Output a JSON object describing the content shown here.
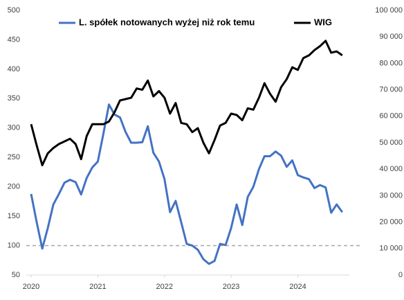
{
  "chart_data": {
    "type": "line",
    "x": [
      2020,
      2020.083,
      2020.167,
      2020.25,
      2020.333,
      2020.417,
      2020.5,
      2020.583,
      2020.667,
      2020.75,
      2020.833,
      2020.917,
      2021,
      2021.083,
      2021.167,
      2021.25,
      2021.333,
      2021.417,
      2021.5,
      2021.583,
      2021.667,
      2021.75,
      2021.833,
      2021.917,
      2022,
      2022.083,
      2022.167,
      2022.25,
      2022.333,
      2022.417,
      2022.5,
      2022.583,
      2022.667,
      2022.75,
      2022.833,
      2022.917,
      2023,
      2023.083,
      2023.167,
      2023.25,
      2023.333,
      2023.417,
      2023.5,
      2023.583,
      2023.667,
      2023.75,
      2023.833,
      2023.917,
      2024,
      2024.083,
      2024.167,
      2024.25,
      2024.333,
      2024.417,
      2024.5,
      2024.583,
      2024.667
    ],
    "xlim": [
      2020,
      2024.7
    ],
    "xticks": [
      2020,
      2021,
      2022,
      2023,
      2024
    ],
    "ylim": [
      50,
      500
    ],
    "yticks": [
      50,
      100,
      150,
      200,
      250,
      300,
      350,
      400,
      450,
      500
    ],
    "y2lim": [
      0,
      100000
    ],
    "y2ticks": [
      0,
      {
        "value": 10000,
        "label": "10 000"
      },
      {
        "value": 20000,
        "label": "20 000"
      },
      {
        "value": 30000,
        "label": "30 000"
      },
      {
        "value": 40000,
        "label": "40 000"
      },
      {
        "value": 50000,
        "label": "50 000"
      },
      {
        "value": 60000,
        "label": "60 000"
      },
      {
        "value": 70000,
        "label": "70 000"
      },
      {
        "value": 80000,
        "label": "80 000"
      },
      {
        "value": 90000,
        "label": "90 000"
      },
      {
        "value": 100000,
        "label": "100 000"
      }
    ],
    "reference_line": {
      "value": 100,
      "color": "#a6a6a6"
    },
    "legend": "top",
    "series": [
      {
        "name": "L. spółek notowanych wyżej niż rok temu",
        "color": "#4472c4",
        "values": [
          188,
          140,
          95,
          130,
          170,
          188,
          207,
          212,
          208,
          187,
          215,
          233,
          243,
          290,
          340,
          323,
          318,
          293,
          275,
          275,
          276,
          303,
          258,
          243,
          213,
          157,
          176,
          140,
          103,
          100,
          93,
          77,
          69,
          74,
          103,
          101,
          130,
          170,
          135,
          183,
          200,
          230,
          252,
          252,
          260,
          253,
          234,
          245,
          220,
          216,
          213,
          198,
          203,
          199,
          156,
          170,
          157
        ]
      },
      {
        "name": "WIG",
        "color": "#000000",
        "axis": "y2",
        "values": [
          57000,
          49000,
          41500,
          46000,
          48000,
          49500,
          50500,
          51500,
          49500,
          43800,
          52500,
          57000,
          57000,
          57000,
          58000,
          61500,
          66000,
          66500,
          67000,
          70500,
          70000,
          73500,
          67500,
          69500,
          67000,
          61000,
          65000,
          57500,
          57000,
          54000,
          55500,
          50000,
          46000,
          51000,
          56500,
          57500,
          61000,
          60500,
          58500,
          63000,
          62500,
          67000,
          72500,
          68500,
          65500,
          71000,
          74000,
          78500,
          77500,
          82000,
          83000,
          85000,
          86500,
          88500,
          84000,
          84500,
          83000
        ]
      }
    ]
  }
}
